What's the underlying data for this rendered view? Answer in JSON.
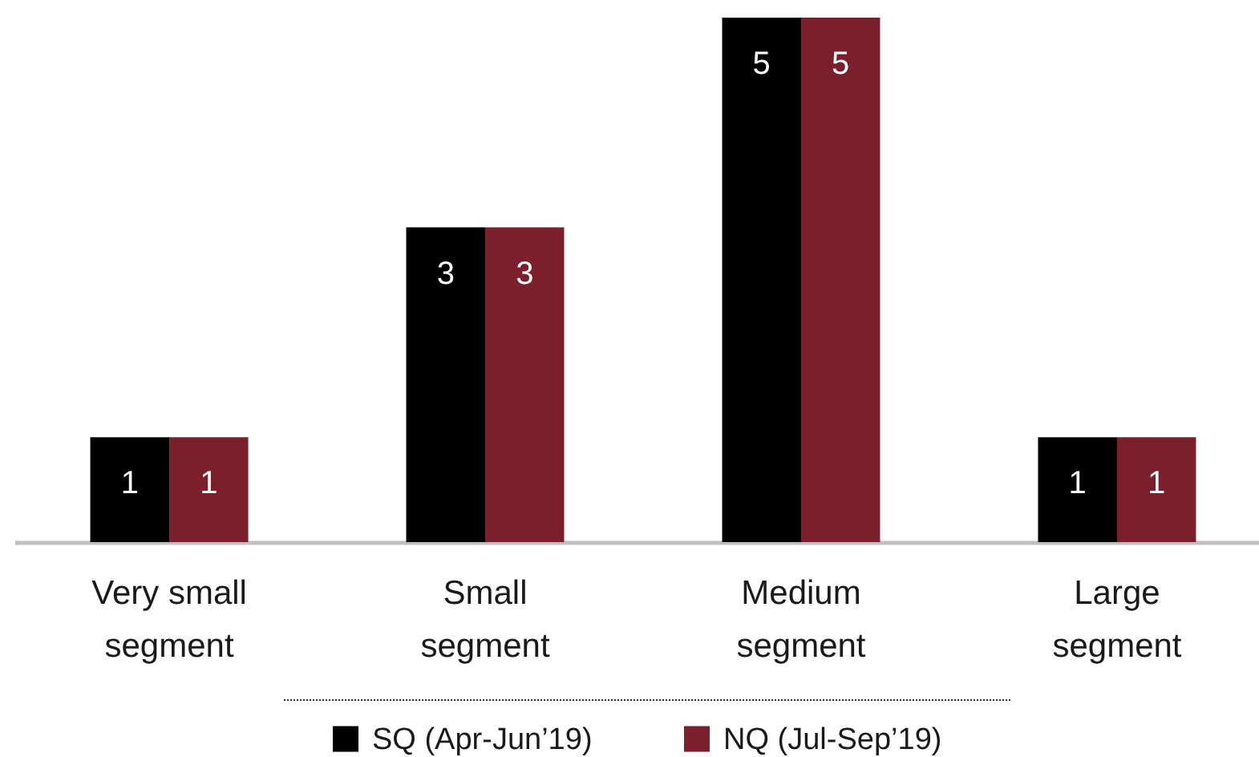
{
  "chart_data": {
    "type": "bar",
    "categories": [
      "Very small segment",
      "Small segment",
      "Medium segment",
      "Large segment"
    ],
    "series": [
      {
        "name": "SQ (Apr-Jun’19)",
        "color": "#000000",
        "values": [
          1,
          3,
          5,
          1
        ]
      },
      {
        "name": "NQ (Jul-Sep’19)",
        "color": "#7a1f2b",
        "values": [
          1,
          3,
          5,
          1
        ]
      }
    ],
    "data_labels": true,
    "legend": "bottom",
    "ylim": [
      0,
      5
    ],
    "tick_labels": "x"
  }
}
